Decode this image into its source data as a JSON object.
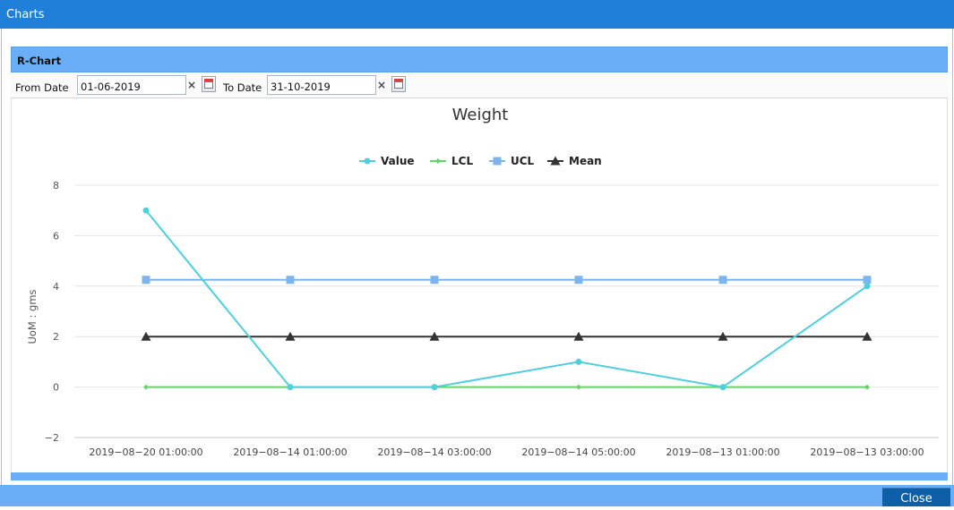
{
  "window": {
    "title": "Charts"
  },
  "panel": {
    "title": "R-Chart"
  },
  "filters": {
    "from_label": "From Date",
    "from_value": "01-06-2019",
    "to_label": "To Date",
    "to_value": "31-10-2019",
    "clear_glyph": "×"
  },
  "footer": {
    "close_label": "Close"
  },
  "chart_data": {
    "type": "line",
    "title": "Weight",
    "xlabel": "",
    "ylabel": "UoM : gms",
    "ylim": [
      -2,
      8
    ],
    "yticks": [
      -2,
      0,
      2,
      4,
      6,
      8
    ],
    "grid": true,
    "legend_position": "top-center",
    "categories": [
      "2019-08-20 01:00:00",
      "2019-08-14 01:00:00",
      "2019-08-14 03:00:00",
      "2019-08-14 05:00:00",
      "2019-08-13 01:00:00",
      "2019-08-13 03:00:00"
    ],
    "series": [
      {
        "name": "Value",
        "color": "#4fcfdc",
        "marker": "circle",
        "values": [
          7,
          0,
          0,
          1,
          0,
          4
        ]
      },
      {
        "name": "LCL",
        "color": "#66d466",
        "marker": "diamond",
        "values": [
          0,
          0,
          0,
          0,
          0,
          0
        ]
      },
      {
        "name": "UCL",
        "color": "#7db4ee",
        "marker": "square",
        "values": [
          4.25,
          4.25,
          4.25,
          4.25,
          4.25,
          4.25
        ]
      },
      {
        "name": "Mean",
        "color": "#333333",
        "marker": "triangle",
        "values": [
          2,
          2,
          2,
          2,
          2,
          2
        ]
      }
    ]
  }
}
